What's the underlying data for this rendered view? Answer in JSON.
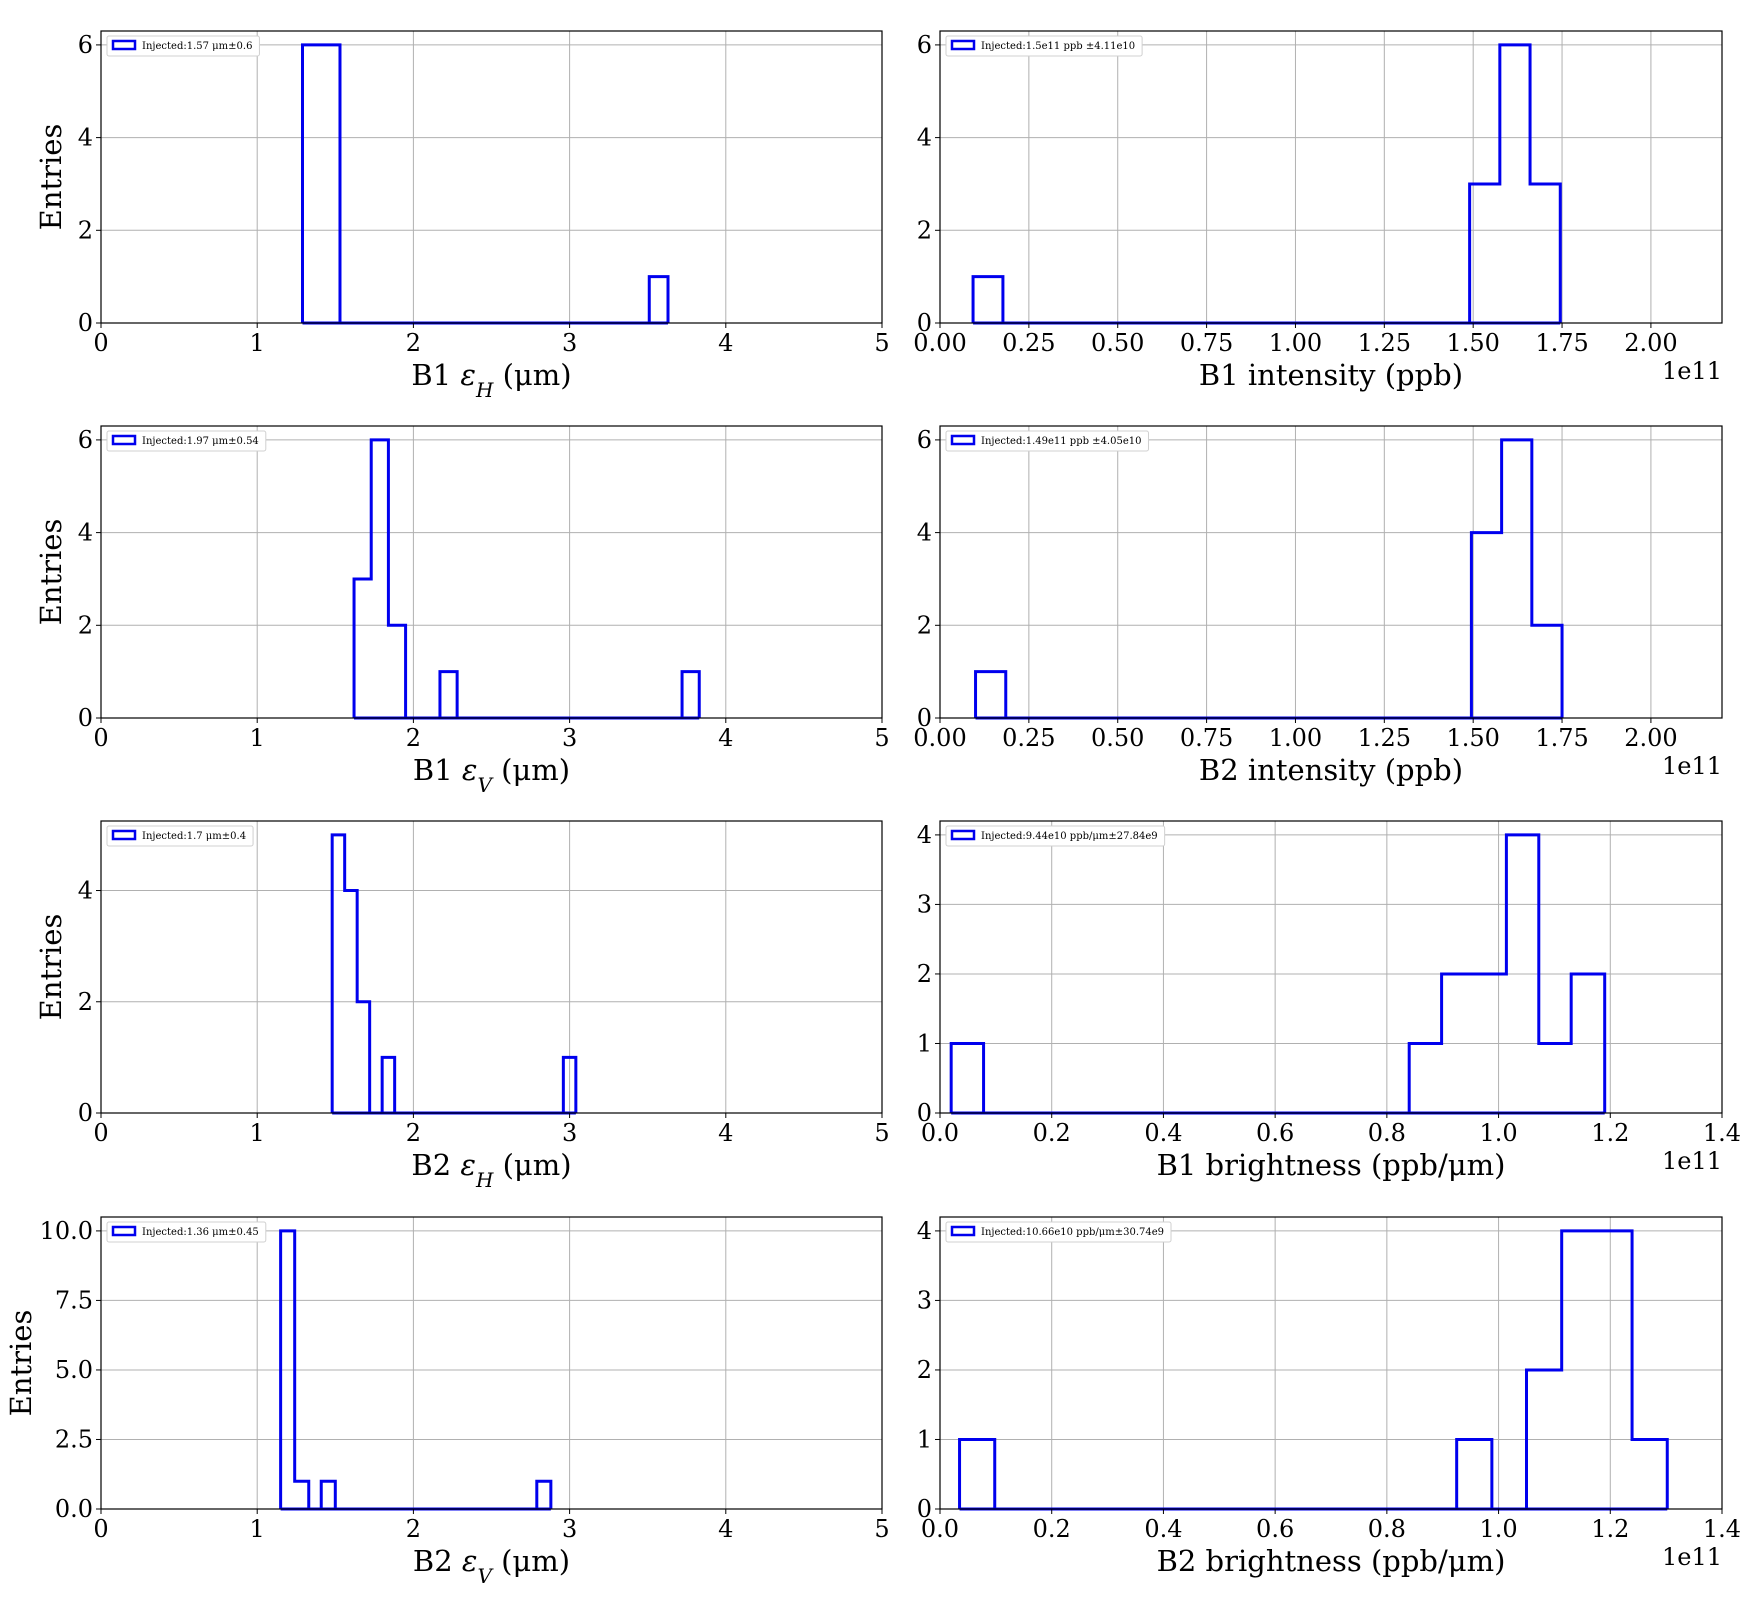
{
  "colors": {
    "series": "#0000ee",
    "grid": "#b0b0b0"
  },
  "chart_data": [
    {
      "type": "histogram",
      "xlabel": "B1 εH (μm)",
      "ylabel": "Entries",
      "xlim": [
        0,
        5
      ],
      "ylim": [
        0,
        6.3
      ],
      "xticks": [
        0,
        1,
        2,
        3,
        4,
        5
      ],
      "xtick_labels": [
        "0",
        "1",
        "2",
        "3",
        "4",
        "5"
      ],
      "yticks": [
        0,
        2,
        4,
        6
      ],
      "ytick_labels": [
        "0",
        "2",
        "4",
        "6"
      ],
      "x_offset_label": "",
      "legend": "Injected:1.57 μm±0.6",
      "bins": [
        [
          1.29,
          1.53,
          6
        ],
        [
          3.51,
          3.63,
          1
        ]
      ],
      "grid": true,
      "legend_position": "upper-left"
    },
    {
      "type": "histogram",
      "xlabel": "B1 intensity (ppb)",
      "ylabel": "",
      "xlim": [
        0,
        2.2
      ],
      "ylim": [
        0,
        6.3
      ],
      "xticks": [
        0,
        0.25,
        0.5,
        0.75,
        1,
        1.25,
        1.5,
        1.75,
        2
      ],
      "xtick_labels": [
        "0.00",
        "0.25",
        "0.50",
        "0.75",
        "1.00",
        "1.25",
        "1.50",
        "1.75",
        "2.00"
      ],
      "yticks": [
        0,
        2,
        4,
        6
      ],
      "ytick_labels": [
        "0",
        "2",
        "4",
        "6"
      ],
      "x_offset_label": "1e11",
      "legend": "Injected:1.5e11 ppb ±4.11e10",
      "bins": [
        [
          0.093,
          0.177,
          1
        ],
        [
          1.49,
          1.575,
          3
        ],
        [
          1.575,
          1.66,
          6
        ],
        [
          1.66,
          1.745,
          3
        ]
      ],
      "grid": true,
      "legend_position": "upper-left"
    },
    {
      "type": "histogram",
      "xlabel": "B1 εV (μm)",
      "ylabel": "Entries",
      "xlim": [
        0,
        5
      ],
      "ylim": [
        0,
        6.3
      ],
      "xticks": [
        0,
        1,
        2,
        3,
        4,
        5
      ],
      "xtick_labels": [
        "0",
        "1",
        "2",
        "3",
        "4",
        "5"
      ],
      "yticks": [
        0,
        2,
        4,
        6
      ],
      "ytick_labels": [
        "0",
        "2",
        "4",
        "6"
      ],
      "x_offset_label": "",
      "legend": "Injected:1.97 μm±0.54",
      "bins": [
        [
          1.62,
          1.73,
          3
        ],
        [
          1.73,
          1.84,
          6
        ],
        [
          1.84,
          1.95,
          2
        ],
        [
          2.17,
          2.28,
          1
        ],
        [
          3.72,
          3.83,
          1
        ]
      ],
      "grid": true,
      "legend_position": "upper-left"
    },
    {
      "type": "histogram",
      "xlabel": "B2 intensity (ppb)",
      "ylabel": "",
      "xlim": [
        0,
        2.2
      ],
      "ylim": [
        0,
        6.3
      ],
      "xticks": [
        0,
        0.25,
        0.5,
        0.75,
        1,
        1.25,
        1.5,
        1.75,
        2
      ],
      "xtick_labels": [
        "0.00",
        "0.25",
        "0.50",
        "0.75",
        "1.00",
        "1.25",
        "1.50",
        "1.75",
        "2.00"
      ],
      "yticks": [
        0,
        2,
        4,
        6
      ],
      "ytick_labels": [
        "0",
        "2",
        "4",
        "6"
      ],
      "x_offset_label": "1e11",
      "legend": "Injected:1.49e11 ppb ±4.05e10",
      "bins": [
        [
          0.1,
          0.185,
          1
        ],
        [
          1.495,
          1.58,
          4
        ],
        [
          1.58,
          1.665,
          6
        ],
        [
          1.665,
          1.75,
          2
        ]
      ],
      "grid": true,
      "legend_position": "upper-left"
    },
    {
      "type": "histogram",
      "xlabel": "B2 εH (μm)",
      "ylabel": "Entries",
      "xlim": [
        0,
        5
      ],
      "ylim": [
        0,
        5.25
      ],
      "xticks": [
        0,
        1,
        2,
        3,
        4,
        5
      ],
      "xtick_labels": [
        "0",
        "1",
        "2",
        "3",
        "4",
        "5"
      ],
      "yticks": [
        0,
        2,
        4
      ],
      "ytick_labels": [
        "0",
        "2",
        "4"
      ],
      "x_offset_label": "",
      "legend": "Injected:1.7 μm±0.4",
      "bins": [
        [
          1.48,
          1.56,
          5
        ],
        [
          1.56,
          1.64,
          4
        ],
        [
          1.64,
          1.72,
          2
        ],
        [
          1.8,
          1.88,
          1
        ],
        [
          2.96,
          3.04,
          1
        ]
      ],
      "grid": true,
      "legend_position": "upper-left"
    },
    {
      "type": "histogram",
      "xlabel": "B1 brightness (ppb/μm)",
      "ylabel": "",
      "xlim": [
        0,
        1.4
      ],
      "ylim": [
        0,
        4.2
      ],
      "xticks": [
        0,
        0.2,
        0.4,
        0.6,
        0.8,
        1,
        1.2,
        1.4
      ],
      "xtick_labels": [
        "0.0",
        "0.2",
        "0.4",
        "0.6",
        "0.8",
        "1.0",
        "1.2",
        "1.4"
      ],
      "yticks": [
        0,
        1,
        2,
        3,
        4
      ],
      "ytick_labels": [
        "0",
        "1",
        "2",
        "3",
        "4"
      ],
      "x_offset_label": "1e11",
      "legend": "Injected:9.44e10 ppb/μm±27.84e9",
      "bins": [
        [
          0.02,
          0.078,
          1
        ],
        [
          0.84,
          0.898,
          1
        ],
        [
          0.898,
          0.956,
          2
        ],
        [
          0.956,
          1.014,
          2
        ],
        [
          1.014,
          1.072,
          4
        ],
        [
          1.072,
          1.13,
          1
        ],
        [
          1.13,
          1.19,
          2
        ]
      ],
      "grid": true,
      "legend_position": "upper-left"
    },
    {
      "type": "histogram",
      "xlabel": "B2 εV (μm)",
      "ylabel": "Entries",
      "xlim": [
        0,
        5
      ],
      "ylim": [
        0,
        10.5
      ],
      "xticks": [
        0,
        1,
        2,
        3,
        4,
        5
      ],
      "xtick_labels": [
        "0",
        "1",
        "2",
        "3",
        "4",
        "5"
      ],
      "yticks": [
        0,
        2.5,
        5,
        7.5,
        10
      ],
      "ytick_labels": [
        "0.0",
        "2.5",
        "5.0",
        "7.5",
        "10.0"
      ],
      "x_offset_label": "",
      "legend": "Injected:1.36 μm±0.45",
      "bins": [
        [
          1.15,
          1.24,
          10
        ],
        [
          1.24,
          1.33,
          1
        ],
        [
          1.41,
          1.5,
          1
        ],
        [
          2.79,
          2.88,
          1
        ]
      ],
      "grid": true,
      "legend_position": "upper-left"
    },
    {
      "type": "histogram",
      "xlabel": "B2 brightness (ppb/μm)",
      "ylabel": "",
      "xlim": [
        0,
        1.4
      ],
      "ylim": [
        0,
        4.2
      ],
      "xticks": [
        0,
        0.2,
        0.4,
        0.6,
        0.8,
        1,
        1.2,
        1.4
      ],
      "xtick_labels": [
        "0.0",
        "0.2",
        "0.4",
        "0.6",
        "0.8",
        "1.0",
        "1.2",
        "1.4"
      ],
      "yticks": [
        0,
        1,
        2,
        3,
        4
      ],
      "ytick_labels": [
        "0",
        "1",
        "2",
        "3",
        "4"
      ],
      "x_offset_label": "1e11",
      "legend": "Injected:10.66e10 ppb/μm±30.74e9",
      "bins": [
        [
          0.035,
          0.098,
          1
        ],
        [
          0.925,
          0.988,
          1
        ],
        [
          1.05,
          1.113,
          2
        ],
        [
          1.113,
          1.176,
          4
        ],
        [
          1.176,
          1.239,
          4
        ],
        [
          1.239,
          1.302,
          1
        ]
      ],
      "grid": true,
      "legend_position": "upper-left"
    }
  ]
}
